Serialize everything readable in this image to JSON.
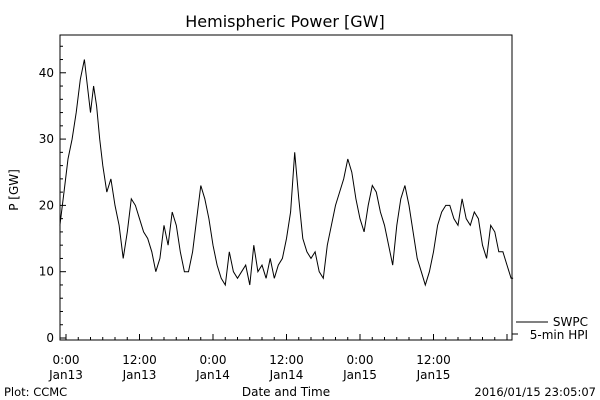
{
  "chart_data": {
    "type": "line",
    "title": "Hemispheric Power [GW]",
    "xlabel": "Date and Time",
    "ylabel": "P [GW]",
    "ylim": [
      0,
      46
    ],
    "y_ticks": [
      0,
      10,
      20,
      30,
      40
    ],
    "x_range": [
      "2016-01-13 00:00",
      "2016-01-15 24:00"
    ],
    "x_ticks": [
      {
        "t": "2016-01-13 00:00",
        "time": "0:00",
        "date": "Jan13"
      },
      {
        "t": "2016-01-13 12:00",
        "time": "12:00",
        "date": "Jan13"
      },
      {
        "t": "2016-01-14 00:00",
        "time": "0:00",
        "date": "Jan14"
      },
      {
        "t": "2016-01-14 12:00",
        "time": "12:00",
        "date": "Jan14"
      },
      {
        "t": "2016-01-15 00:00",
        "time": "0:00",
        "date": "Jan15"
      },
      {
        "t": "2016-01-15 12:00",
        "time": "12:00",
        "date": "Jan15"
      }
    ],
    "grid": false,
    "legend": {
      "placement": "bottom-right-outside",
      "entries": [
        "SWPC",
        "5-min HPI"
      ]
    },
    "series": [
      {
        "name": "SWPC",
        "color": "#000000",
        "points": [
          [
            "2016-01-12 23:00",
            17
          ],
          [
            "2016-01-12 23:40",
            22
          ],
          [
            "2016-01-13 00:20",
            27
          ],
          [
            "2016-01-13 01:00",
            30
          ],
          [
            "2016-01-13 01:40",
            34
          ],
          [
            "2016-01-13 02:20",
            39
          ],
          [
            "2016-01-13 03:00",
            42
          ],
          [
            "2016-01-13 03:30",
            38
          ],
          [
            "2016-01-13 04:00",
            34
          ],
          [
            "2016-01-13 04:30",
            38
          ],
          [
            "2016-01-13 05:00",
            35
          ],
          [
            "2016-01-13 05:30",
            30
          ],
          [
            "2016-01-13 06:00",
            26
          ],
          [
            "2016-01-13 06:40",
            22
          ],
          [
            "2016-01-13 07:20",
            24
          ],
          [
            "2016-01-13 08:00",
            20
          ],
          [
            "2016-01-13 08:40",
            17
          ],
          [
            "2016-01-13 09:20",
            12
          ],
          [
            "2016-01-13 10:00",
            16
          ],
          [
            "2016-01-13 10:40",
            21
          ],
          [
            "2016-01-13 11:20",
            20
          ],
          [
            "2016-01-13 12:00",
            18
          ],
          [
            "2016-01-13 12:40",
            16
          ],
          [
            "2016-01-13 13:20",
            15
          ],
          [
            "2016-01-13 14:00",
            13
          ],
          [
            "2016-01-13 14:40",
            10
          ],
          [
            "2016-01-13 15:20",
            12
          ],
          [
            "2016-01-13 16:00",
            17
          ],
          [
            "2016-01-13 16:40",
            14
          ],
          [
            "2016-01-13 17:20",
            19
          ],
          [
            "2016-01-13 18:00",
            17
          ],
          [
            "2016-01-13 18:40",
            13
          ],
          [
            "2016-01-13 19:20",
            10
          ],
          [
            "2016-01-13 20:00",
            10
          ],
          [
            "2016-01-13 20:40",
            13
          ],
          [
            "2016-01-13 21:20",
            18
          ],
          [
            "2016-01-13 22:00",
            23
          ],
          [
            "2016-01-13 22:40",
            21
          ],
          [
            "2016-01-13 23:20",
            18
          ],
          [
            "2016-01-14 00:00",
            14
          ],
          [
            "2016-01-14 00:40",
            11
          ],
          [
            "2016-01-14 01:20",
            9
          ],
          [
            "2016-01-14 02:00",
            8
          ],
          [
            "2016-01-14 02:40",
            13
          ],
          [
            "2016-01-14 03:20",
            10
          ],
          [
            "2016-01-14 04:00",
            9
          ],
          [
            "2016-01-14 04:40",
            10
          ],
          [
            "2016-01-14 05:20",
            11
          ],
          [
            "2016-01-14 06:00",
            8
          ],
          [
            "2016-01-14 06:40",
            14
          ],
          [
            "2016-01-14 07:20",
            10
          ],
          [
            "2016-01-14 08:00",
            11
          ],
          [
            "2016-01-14 08:40",
            9
          ],
          [
            "2016-01-14 09:20",
            12
          ],
          [
            "2016-01-14 10:00",
            9
          ],
          [
            "2016-01-14 10:40",
            11
          ],
          [
            "2016-01-14 11:20",
            12
          ],
          [
            "2016-01-14 12:00",
            15
          ],
          [
            "2016-01-14 12:40",
            19
          ],
          [
            "2016-01-14 13:20",
            28
          ],
          [
            "2016-01-14 14:00",
            21
          ],
          [
            "2016-01-14 14:40",
            15
          ],
          [
            "2016-01-14 15:20",
            13
          ],
          [
            "2016-01-14 16:00",
            12
          ],
          [
            "2016-01-14 16:40",
            13
          ],
          [
            "2016-01-14 17:20",
            10
          ],
          [
            "2016-01-14 18:00",
            9
          ],
          [
            "2016-01-14 18:40",
            14
          ],
          [
            "2016-01-14 19:20",
            17
          ],
          [
            "2016-01-14 20:00",
            20
          ],
          [
            "2016-01-14 20:40",
            22
          ],
          [
            "2016-01-14 21:20",
            24
          ],
          [
            "2016-01-14 22:00",
            27
          ],
          [
            "2016-01-14 22:40",
            25
          ],
          [
            "2016-01-14 23:20",
            21
          ],
          [
            "2016-01-15 00:00",
            18
          ],
          [
            "2016-01-15 00:40",
            16
          ],
          [
            "2016-01-15 01:20",
            20
          ],
          [
            "2016-01-15 02:00",
            23
          ],
          [
            "2016-01-15 02:40",
            22
          ],
          [
            "2016-01-15 03:20",
            19
          ],
          [
            "2016-01-15 04:00",
            17
          ],
          [
            "2016-01-15 04:40",
            14
          ],
          [
            "2016-01-15 05:20",
            11
          ],
          [
            "2016-01-15 06:00",
            17
          ],
          [
            "2016-01-15 06:40",
            21
          ],
          [
            "2016-01-15 07:20",
            23
          ],
          [
            "2016-01-15 08:00",
            20
          ],
          [
            "2016-01-15 08:40",
            16
          ],
          [
            "2016-01-15 09:20",
            12
          ],
          [
            "2016-01-15 10:00",
            10
          ],
          [
            "2016-01-15 10:40",
            8
          ],
          [
            "2016-01-15 11:20",
            10
          ],
          [
            "2016-01-15 12:00",
            13
          ],
          [
            "2016-01-15 12:40",
            17
          ],
          [
            "2016-01-15 13:20",
            19
          ],
          [
            "2016-01-15 14:00",
            20
          ],
          [
            "2016-01-15 14:40",
            20
          ],
          [
            "2016-01-15 15:20",
            18
          ],
          [
            "2016-01-15 16:00",
            17
          ],
          [
            "2016-01-15 16:40",
            21
          ],
          [
            "2016-01-15 17:20",
            18
          ],
          [
            "2016-01-15 18:00",
            17
          ],
          [
            "2016-01-15 18:40",
            19
          ],
          [
            "2016-01-15 19:20",
            18
          ],
          [
            "2016-01-15 20:00",
            14
          ],
          [
            "2016-01-15 20:40",
            12
          ],
          [
            "2016-01-15 21:20",
            17
          ],
          [
            "2016-01-15 22:00",
            16
          ],
          [
            "2016-01-15 22:40",
            13
          ],
          [
            "2016-01-15 23:20",
            13
          ],
          [
            "2016-01-16 00:00",
            11
          ],
          [
            "2016-01-16 00:40",
            9
          ],
          [
            "2016-01-16 01:00",
            9
          ]
        ]
      },
      {
        "name": "5-min HPI",
        "color": "#000000",
        "points": []
      }
    ]
  },
  "footer": {
    "plot_credit": "Plot: CCMC",
    "timestamp": "2016/01/15 23:05:07"
  }
}
